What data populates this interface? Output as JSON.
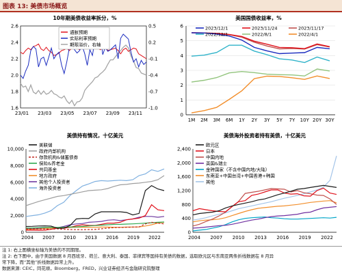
{
  "figure": {
    "title": "图表 13:  美债市场概览"
  },
  "notes": [
    "注 1: 右上图横坐标轴为美债的不同期限。",
    "注 2: 右下图中，由于美国数据 8 月西班牙、荷兰、意大利、泰国、菲律宾等国持有美债的数据，选取欧元区与东南亚两条折线数据在 8 月异",
    "常下降，而“其他”折线数据异常上升。",
    "数据来源: CEIC，同花顺，Bloomberg，FRED，兴业证券经济与金融研究院整理"
  ],
  "chart_data": [
    {
      "type": "line",
      "title": "10年期美债收益率拆分，%",
      "x_ticks": [
        "23/01",
        "23/03",
        "23/05",
        "23/07",
        "23/09",
        "23/11"
      ],
      "ylim_left": [
        1.6,
        2.6
      ],
      "yticks_left": [
        "2.6",
        "2.4",
        "2.2",
        "2.0",
        "1.8",
        "1.6"
      ],
      "ylim_right": [
        -1.0,
        0.5
      ],
      "yticks_right": [
        "0.5",
        "0.2",
        "-0.1",
        "-0.4",
        "-0.7",
        "-1.0"
      ],
      "legend_position": "top-center",
      "series": [
        {
          "name": "通胀预期",
          "axis": "left",
          "color": "#e0101a",
          "values": [
            2.28,
            2.26,
            2.3,
            2.33,
            2.31,
            2.35,
            2.36,
            2.38,
            2.32,
            2.3,
            2.34,
            2.3,
            2.28,
            2.24,
            2.25,
            2.27,
            2.3,
            2.31,
            2.33,
            2.3,
            2.33,
            2.34,
            2.33,
            2.31,
            2.34,
            2.33,
            2.35,
            2.36,
            2.37,
            2.37,
            2.35,
            2.31,
            2.33,
            2.34,
            2.3,
            2.31,
            2.32,
            2.33,
            2.3,
            2.26,
            2.31,
            2.33,
            2.29,
            2.31,
            2.33,
            2.32,
            2.26,
            2.24,
            2.22,
            2.2
          ]
        },
        {
          "name": "实际利率预期",
          "axis": "left",
          "color": "#1a2bbf",
          "values": [
            2.0,
            1.96,
            2.05,
            2.12,
            2.3,
            2.35,
            2.32,
            2.1,
            2.2,
            2.22,
            2.12,
            2.22,
            2.33,
            2.2,
            2.25,
            2.28,
            2.12,
            2.02,
            2.16,
            2.33,
            2.39,
            2.31,
            2.27,
            2.3,
            2.36,
            2.26,
            2.12,
            2.31,
            2.24,
            2.43,
            2.42,
            2.51,
            2.25,
            2.34,
            2.29,
            2.31,
            2.34,
            2.37,
            2.2,
            2.45,
            2.5,
            2.47,
            2.44,
            2.28,
            2.16,
            2.2,
            2.1,
            2.18,
            2.13,
            2.16
          ]
        },
        {
          "name": "期限溢价，右轴",
          "axis": "right",
          "color": "#a6a6a6",
          "values": [
            -0.55,
            -0.62,
            -0.6,
            -0.7,
            -0.58,
            -0.71,
            -0.74,
            -0.68,
            -0.75,
            -0.69,
            -0.75,
            -0.73,
            -0.68,
            -0.74,
            -0.76,
            -0.8,
            -0.82,
            -0.78,
            -0.87,
            -0.92,
            -0.86,
            -0.96,
            -0.89,
            -0.88,
            -0.82,
            -0.68,
            -0.62,
            -0.57,
            -0.52,
            -0.45,
            -0.43,
            -0.38,
            -0.34,
            -0.29,
            -0.2,
            -0.12,
            -0.12,
            -0.06,
            0.0,
            0.05,
            0.11,
            0.15,
            0.1,
            -0.05,
            -0.14,
            -0.26,
            -0.28,
            -0.36,
            -0.38,
            -0.4
          ]
        }
      ]
    },
    {
      "type": "line",
      "title": "美国国债收益率，%",
      "categories": [
        "1M",
        "2M",
        "3M",
        "6M",
        "1Y",
        "2Y",
        "3Y",
        "5Y",
        "7Y",
        "10Y",
        "20Y",
        "30Y"
      ],
      "ylim": [
        0,
        6
      ],
      "yticks": [
        "6",
        "5",
        "4",
        "3",
        "2",
        "1",
        "0"
      ],
      "legend_position": "top",
      "series": [
        {
          "name": "2023/12/1",
          "color": "#1a2bbf",
          "values": [
            5.54,
            5.53,
            5.45,
            5.32,
            5.05,
            4.55,
            4.32,
            4.13,
            4.17,
            4.2,
            4.55,
            4.46
          ]
        },
        {
          "name": "2023/11/24",
          "color": "#e0101a",
          "values": [
            5.55,
            5.53,
            5.5,
            5.43,
            5.29,
            4.97,
            4.77,
            4.55,
            4.53,
            4.47,
            4.78,
            4.6
          ]
        },
        {
          "name": "2023/11/17",
          "color": "#c0504d",
          "values": [
            5.54,
            5.52,
            5.49,
            5.41,
            5.24,
            4.9,
            4.65,
            4.45,
            4.48,
            4.44,
            4.74,
            4.58
          ]
        },
        {
          "name": "2022/12/1",
          "color": "#2fb3c9",
          "values": [
            3.96,
            4.03,
            4.21,
            4.7,
            4.7,
            4.3,
            4.06,
            3.78,
            3.7,
            3.53,
            3.9,
            3.64
          ]
        },
        {
          "name": "2022/8/1",
          "color": "#92c47d",
          "values": [
            2.21,
            2.33,
            2.51,
            2.83,
            2.92,
            2.85,
            2.74,
            2.71,
            2.69,
            2.62,
            3.09,
            2.96
          ]
        },
        {
          "name": "2022/4/1",
          "color": "#f28e2b",
          "values": [
            0.13,
            0.28,
            0.5,
            1.04,
            1.62,
            2.44,
            2.61,
            2.59,
            2.5,
            2.39,
            2.62,
            2.45
          ]
        }
      ]
    },
    {
      "type": "line",
      "title": "美债持有情况，十亿美元",
      "x_ticks": [
        "2004",
        "2007",
        "2010",
        "2013",
        "2016",
        "2019",
        "2022"
      ],
      "ylim": [
        0,
        10000
      ],
      "yticks": [
        "10,000",
        "8,000",
        "6,000",
        "4,000",
        "2,000",
        "0"
      ],
      "legend_position": "top-left",
      "series": [
        {
          "name": "美联储",
          "color": "#1a1a1a",
          "values": [
            700,
            710,
            755,
            770,
            740,
            480,
            500,
            800,
            1600,
            1660,
            1650,
            2200,
            2460,
            2460,
            2460,
            2460,
            2380,
            2080,
            2260,
            5000,
            5600,
            5200,
            5000
          ]
        },
        {
          "name": "政府内部机构",
          "color": "#9e9e9e",
          "values": [
            3200,
            3450,
            3700,
            3900,
            4100,
            4300,
            4400,
            4550,
            4700,
            4850,
            5000,
            5050,
            5100,
            5250,
            5500,
            5700,
            5750,
            5850,
            5900,
            6000,
            6100,
            6300,
            6800
          ]
        },
        {
          "name": "存款机构&储蓄债券",
          "color": "#c0281f",
          "dash": "3,2",
          "values": [
            400,
            420,
            400,
            390,
            370,
            420,
            350,
            330,
            320,
            310,
            330,
            340,
            420,
            500,
            560,
            580,
            600,
            620,
            640,
            1000,
            1200,
            1100,
            1000
          ]
        },
        {
          "name": "保险&养老金",
          "color": "#2fa84f",
          "values": [
            500,
            520,
            550,
            570,
            580,
            590,
            600,
            620,
            650,
            700,
            760,
            800,
            850,
            900,
            940,
            950,
            980,
            1010,
            1050,
            1100,
            1150,
            1200,
            1230
          ]
        },
        {
          "name": "共同基金",
          "color": "#e0101a",
          "values": [
            250,
            250,
            240,
            250,
            350,
            500,
            480,
            600,
            780,
            900,
            830,
            820,
            950,
            1100,
            1100,
            1200,
            1500,
            1600,
            1700,
            2000,
            3300,
            2700,
            2600
          ]
        },
        {
          "name": "地方政府",
          "color": "#f28e2b",
          "values": [
            300,
            350,
            400,
            460,
            500,
            520,
            530,
            580,
            600,
            610,
            610,
            590,
            620,
            620,
            610,
            600,
            620,
            630,
            650,
            750,
            900,
            1100,
            1200
          ]
        },
        {
          "name": "其他个人投资者",
          "color": "#6f3aa0",
          "values": [
            450,
            470,
            500,
            520,
            500,
            550,
            700,
            900,
            1000,
            1050,
            1200,
            1250,
            1300,
            1450,
            1500,
            1400,
            1500,
            1600,
            1800,
            1900,
            1900,
            1800,
            1900
          ]
        },
        {
          "name": "海外投资者",
          "color": "#7fb0e0",
          "values": [
            1900,
            2000,
            2100,
            2300,
            2600,
            3200,
            3600,
            4400,
            5000,
            5550,
            5800,
            6100,
            6200,
            6150,
            6200,
            6250,
            6200,
            6300,
            6800,
            7000,
            7500,
            7300,
            7600
          ]
        }
      ]
    },
    {
      "type": "line",
      "title": "美债海外投资者持有美债，十亿美元",
      "x_ticks": [
        "2004",
        "2007",
        "2010",
        "2013",
        "2016",
        "2019",
        "2022"
      ],
      "ylim": [
        0,
        2400
      ],
      "yticks": [
        "2,400",
        "2,000",
        "1,600",
        "1,200",
        "800",
        "400",
        "0"
      ],
      "legend_position": "top-left",
      "series": [
        {
          "name": "欧元区",
          "color": "#1a1a1a",
          "values": [
            500,
            540,
            560,
            580,
            620,
            700,
            760,
            800,
            840,
            880,
            930,
            960,
            1020,
            1080,
            1130,
            1180,
            1240,
            1260,
            1290,
            1320,
            1350,
            1320,
            1290
          ]
        },
        {
          "name": "日本",
          "color": "#e0101a",
          "values": [
            620,
            680,
            650,
            620,
            600,
            590,
            740,
            880,
            910,
            1060,
            1100,
            1160,
            1220,
            1220,
            1130,
            1100,
            1110,
            1050,
            1040,
            1200,
            1270,
            1130,
            1090
          ]
        },
        {
          "name": "中国内地",
          "color": "#c0504d",
          "values": [
            180,
            230,
            310,
            380,
            470,
            580,
            740,
            890,
            1120,
            1150,
            1180,
            1220,
            1260,
            1250,
            1240,
            1160,
            1200,
            1140,
            1110,
            1070,
            1060,
            960,
            800
          ]
        },
        {
          "name": "英国&瑞士",
          "color": "#7030a0",
          "values": [
            120,
            130,
            150,
            170,
            190,
            200,
            230,
            270,
            310,
            350,
            380,
            420,
            450,
            470,
            480,
            500,
            520,
            560,
            580,
            650,
            700,
            720,
            740
          ]
        },
        {
          "name": "金砖国家（不含中国内地/大陆）",
          "color": "#00a5c8",
          "values": [
            40,
            60,
            80,
            120,
            160,
            220,
            300,
            360,
            400,
            420,
            430,
            440,
            420,
            410,
            390,
            380,
            380,
            390,
            400,
            410,
            420,
            410,
            430
          ]
        },
        {
          "name": "东南亚+中国台湾+中国香港+韩国",
          "color": "#f28e2b",
          "values": [
            300,
            330,
            350,
            360,
            380,
            420,
            480,
            540,
            600,
            650,
            690,
            710,
            730,
            750,
            760,
            780,
            800,
            830,
            860,
            880,
            900,
            910,
            850
          ]
        },
        {
          "name": "其他",
          "color": "#a3c4e8",
          "values": [
            350,
            380,
            420,
            470,
            520,
            560,
            620,
            680,
            720,
            760,
            800,
            840,
            880,
            930,
            980,
            1020,
            1060,
            1110,
            1160,
            1220,
            1300,
            1500,
            2200
          ]
        }
      ]
    }
  ]
}
